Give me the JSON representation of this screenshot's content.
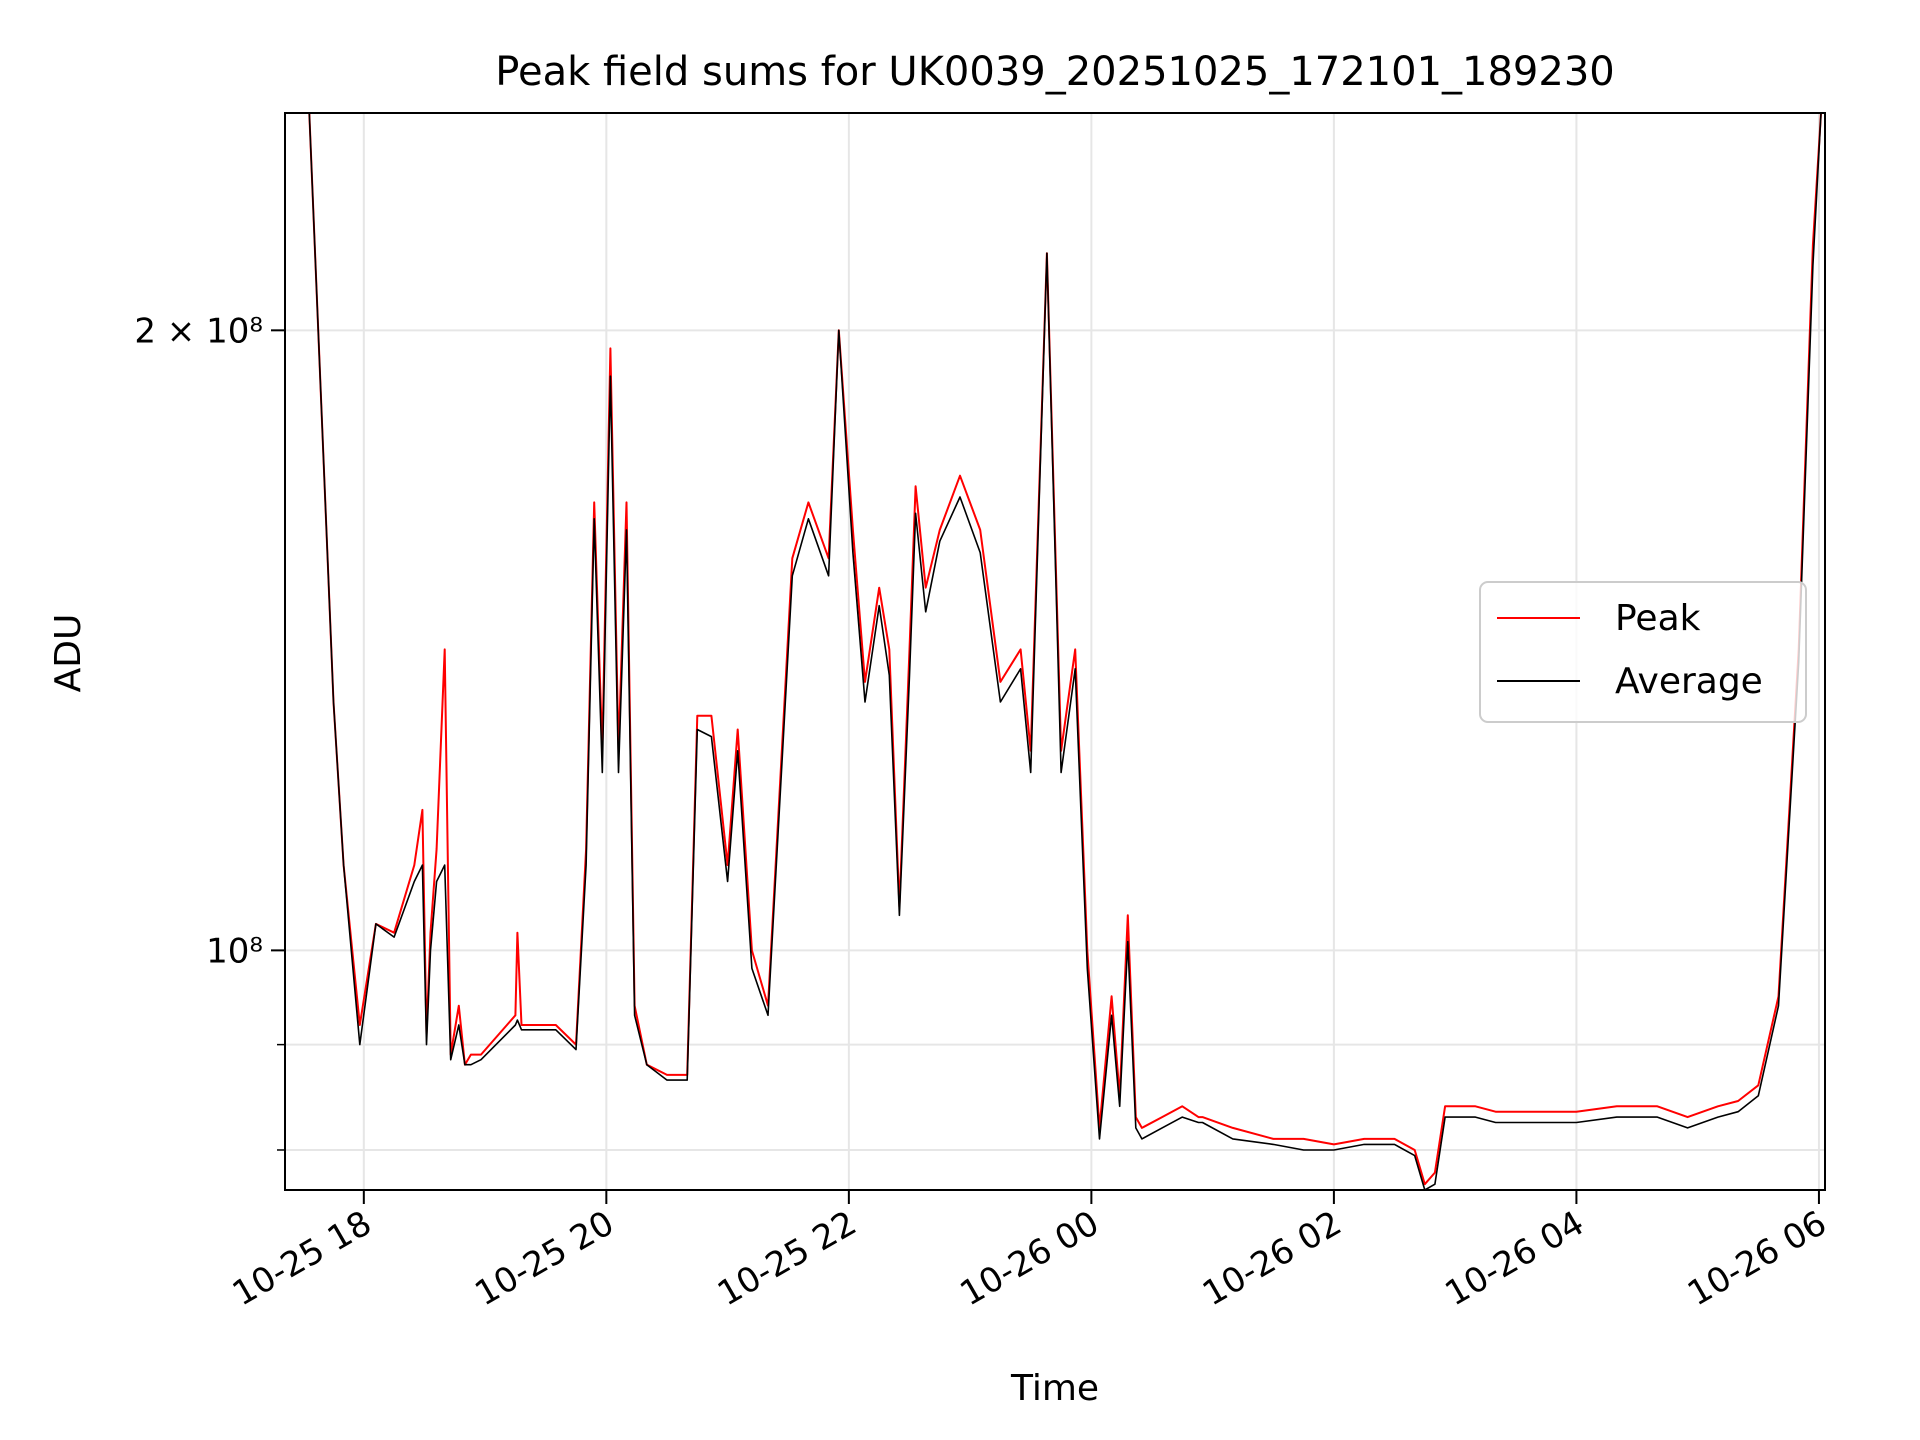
{
  "chart_data": {
    "type": "line",
    "title": "Peak field sums for UK0039_20251025_172101_189230",
    "xlabel": "Time",
    "ylabel": "ADU",
    "y_scale": "log",
    "ylim": [
      76500000,
      255000000
    ],
    "xlim": [
      "2025-10-25 17:21",
      "2025-10-26 06:03"
    ],
    "grid": true,
    "legend_position": "center-right",
    "x_ticks": [
      {
        "t": "2025-10-25 18:00",
        "label": "10-25 18"
      },
      {
        "t": "2025-10-25 20:00",
        "label": "10-25 20"
      },
      {
        "t": "2025-10-25 22:00",
        "label": "10-25 22"
      },
      {
        "t": "2025-10-26 00:00",
        "label": "10-26 00"
      },
      {
        "t": "2025-10-26 02:00",
        "label": "10-26 02"
      },
      {
        "t": "2025-10-26 04:00",
        "label": "10-26 04"
      },
      {
        "t": "2025-10-26 06:00",
        "label": "10-26 06"
      }
    ],
    "y_major_ticks": [
      {
        "value": 100000000,
        "label": "10⁸"
      },
      {
        "value": 200000000,
        "label": "2 × 10⁸"
      }
    ],
    "y_minor_ticks": [
      80000000,
      90000000
    ],
    "series": [
      {
        "name": "Peak",
        "color": "#ff0000",
        "x": [
          "2025-10-25 17:21",
          "2025-10-25 17:33",
          "2025-10-25 17:45",
          "2025-10-25 17:50",
          "2025-10-25 17:58",
          "2025-10-25 18:06",
          "2025-10-25 18:15",
          "2025-10-25 18:25",
          "2025-10-25 18:29",
          "2025-10-25 18:31",
          "2025-10-25 18:33",
          "2025-10-25 18:36",
          "2025-10-25 18:40",
          "2025-10-25 18:43",
          "2025-10-25 18:47",
          "2025-10-25 18:50",
          "2025-10-25 18:53",
          "2025-10-25 18:58",
          "2025-10-25 19:15",
          "2025-10-25 19:16",
          "2025-10-25 19:18",
          "2025-10-25 19:35",
          "2025-10-25 19:45",
          "2025-10-25 19:50",
          "2025-10-25 19:54",
          "2025-10-25 19:58",
          "2025-10-25 20:02",
          "2025-10-25 20:06",
          "2025-10-25 20:10",
          "2025-10-25 20:14",
          "2025-10-25 20:20",
          "2025-10-25 20:30",
          "2025-10-25 20:40",
          "2025-10-25 20:45",
          "2025-10-25 20:52",
          "2025-10-25 21:00",
          "2025-10-25 21:05",
          "2025-10-25 21:12",
          "2025-10-25 21:20",
          "2025-10-25 21:32",
          "2025-10-25 21:40",
          "2025-10-25 21:50",
          "2025-10-25 21:55",
          "2025-10-25 22:02",
          "2025-10-25 22:08",
          "2025-10-25 22:15",
          "2025-10-25 22:20",
          "2025-10-25 22:25",
          "2025-10-25 22:30",
          "2025-10-25 22:33",
          "2025-10-25 22:38",
          "2025-10-25 22:45",
          "2025-10-25 22:55",
          "2025-10-25 23:05",
          "2025-10-25 23:15",
          "2025-10-25 23:25",
          "2025-10-25 23:30",
          "2025-10-25 23:38",
          "2025-10-25 23:45",
          "2025-10-25 23:52",
          "2025-10-25 23:58",
          "2025-10-26 00:04",
          "2025-10-26 00:10",
          "2025-10-26 00:14",
          "2025-10-26 00:18",
          "2025-10-26 00:22",
          "2025-10-26 00:25",
          "2025-10-26 00:35",
          "2025-10-26 00:45",
          "2025-10-26 00:53",
          "2025-10-26 00:55",
          "2025-10-26 01:10",
          "2025-10-26 01:30",
          "2025-10-26 01:45",
          "2025-10-26 02:00",
          "2025-10-26 02:15",
          "2025-10-26 02:30",
          "2025-10-26 02:40",
          "2025-10-26 02:45",
          "2025-10-26 02:50",
          "2025-10-26 02:55",
          "2025-10-26 03:05",
          "2025-10-26 03:10",
          "2025-10-26 03:20",
          "2025-10-26 03:40",
          "2025-10-26 04:00",
          "2025-10-26 04:20",
          "2025-10-26 04:40",
          "2025-10-26 04:55",
          "2025-10-26 05:10",
          "2025-10-26 05:20",
          "2025-10-26 05:30",
          "2025-10-26 05:40",
          "2025-10-26 05:50",
          "2025-10-26 05:57",
          "2025-10-26 06:01"
        ],
        "y": [
          255000000,
          255000000,
          132000000,
          110000000,
          92000000,
          103000000,
          102000000,
          110000000,
          117000000,
          91000000,
          102000000,
          112000000,
          140000000,
          89000000,
          94000000,
          88000000,
          89000000,
          89000000,
          93000000,
          102000000,
          92000000,
          92000000,
          90000000,
          112000000,
          165000000,
          125000000,
          196000000,
          125000000,
          165000000,
          94000000,
          88000000,
          87000000,
          87000000,
          130000000,
          130000000,
          110000000,
          128000000,
          100000000,
          94000000,
          155000000,
          165000000,
          155000000,
          200000000,
          160000000,
          135000000,
          150000000,
          140000000,
          105000000,
          140000000,
          168000000,
          150000000,
          160000000,
          170000000,
          160000000,
          135000000,
          140000000,
          125000000,
          218000000,
          125000000,
          140000000,
          100000000,
          82000000,
          95000000,
          85000000,
          104000000,
          83000000,
          82000000,
          83000000,
          84000000,
          83000000,
          83000000,
          82000000,
          81000000,
          81000000,
          80500000,
          81000000,
          81000000,
          80000000,
          77000000,
          78000000,
          84000000,
          84000000,
          84000000,
          83500000,
          83500000,
          83500000,
          84000000,
          84000000,
          83000000,
          84000000,
          84500000,
          86000000,
          95000000,
          140000000,
          220000000,
          255000000
        ]
      },
      {
        "name": "Average",
        "color": "#000000",
        "x": [
          "2025-10-25 17:21",
          "2025-10-25 17:33",
          "2025-10-25 17:45",
          "2025-10-25 17:50",
          "2025-10-25 17:58",
          "2025-10-25 18:06",
          "2025-10-25 18:15",
          "2025-10-25 18:25",
          "2025-10-25 18:29",
          "2025-10-25 18:31",
          "2025-10-25 18:33",
          "2025-10-25 18:36",
          "2025-10-25 18:40",
          "2025-10-25 18:43",
          "2025-10-25 18:47",
          "2025-10-25 18:50",
          "2025-10-25 18:53",
          "2025-10-25 18:58",
          "2025-10-25 19:15",
          "2025-10-25 19:16",
          "2025-10-25 19:18",
          "2025-10-25 19:35",
          "2025-10-25 19:45",
          "2025-10-25 19:50",
          "2025-10-25 19:54",
          "2025-10-25 19:58",
          "2025-10-25 20:02",
          "2025-10-25 20:06",
          "2025-10-25 20:10",
          "2025-10-25 20:14",
          "2025-10-25 20:20",
          "2025-10-25 20:30",
          "2025-10-25 20:40",
          "2025-10-25 20:45",
          "2025-10-25 20:52",
          "2025-10-25 21:00",
          "2025-10-25 21:05",
          "2025-10-25 21:12",
          "2025-10-25 21:20",
          "2025-10-25 21:32",
          "2025-10-25 21:40",
          "2025-10-25 21:50",
          "2025-10-25 21:55",
          "2025-10-25 22:02",
          "2025-10-25 22:08",
          "2025-10-25 22:15",
          "2025-10-25 22:20",
          "2025-10-25 22:25",
          "2025-10-25 22:30",
          "2025-10-25 22:33",
          "2025-10-25 22:38",
          "2025-10-25 22:45",
          "2025-10-25 22:55",
          "2025-10-25 23:05",
          "2025-10-25 23:15",
          "2025-10-25 23:25",
          "2025-10-25 23:30",
          "2025-10-25 23:38",
          "2025-10-25 23:45",
          "2025-10-25 23:52",
          "2025-10-25 23:58",
          "2025-10-26 00:04",
          "2025-10-26 00:10",
          "2025-10-26 00:14",
          "2025-10-26 00:18",
          "2025-10-26 00:22",
          "2025-10-26 00:25",
          "2025-10-26 00:35",
          "2025-10-26 00:45",
          "2025-10-26 00:53",
          "2025-10-26 00:55",
          "2025-10-26 01:10",
          "2025-10-26 01:30",
          "2025-10-26 01:45",
          "2025-10-26 02:00",
          "2025-10-26 02:15",
          "2025-10-26 02:30",
          "2025-10-26 02:40",
          "2025-10-26 02:45",
          "2025-10-26 02:50",
          "2025-10-26 02:55",
          "2025-10-26 03:05",
          "2025-10-26 03:10",
          "2025-10-26 03:20",
          "2025-10-26 03:40",
          "2025-10-26 04:00",
          "2025-10-26 04:20",
          "2025-10-26 04:40",
          "2025-10-26 04:55",
          "2025-10-26 05:10",
          "2025-10-26 05:20",
          "2025-10-26 05:30",
          "2025-10-26 05:40",
          "2025-10-26 05:50",
          "2025-10-26 05:57",
          "2025-10-26 06:01"
        ],
        "y": [
          255000000,
          255000000,
          132000000,
          110000000,
          90000000,
          103000000,
          101500000,
          108000000,
          110000000,
          90000000,
          100000000,
          108000000,
          110000000,
          88500000,
          92000000,
          88000000,
          88000000,
          88500000,
          92000000,
          92500000,
          91500000,
          91500000,
          89500000,
          110000000,
          162000000,
          122000000,
          190000000,
          122000000,
          160000000,
          93000000,
          88000000,
          86500000,
          86500000,
          128000000,
          127000000,
          108000000,
          125000000,
          98000000,
          93000000,
          152000000,
          162000000,
          152000000,
          200000000,
          156000000,
          132000000,
          147000000,
          136000000,
          104000000,
          136000000,
          163000000,
          146000000,
          158000000,
          166000000,
          156000000,
          132000000,
          137000000,
          122000000,
          218000000,
          122000000,
          137000000,
          98000000,
          81000000,
          93000000,
          84000000,
          101000000,
          82000000,
          81000000,
          82000000,
          83000000,
          82500000,
          82500000,
          81000000,
          80500000,
          80000000,
          80000000,
          80500000,
          80500000,
          79500000,
          76500000,
          77000000,
          83000000,
          83000000,
          83000000,
          82500000,
          82500000,
          82500000,
          83000000,
          83000000,
          82000000,
          83000000,
          83500000,
          85000000,
          94000000,
          138000000,
          215000000,
          255000000
        ]
      }
    ]
  }
}
